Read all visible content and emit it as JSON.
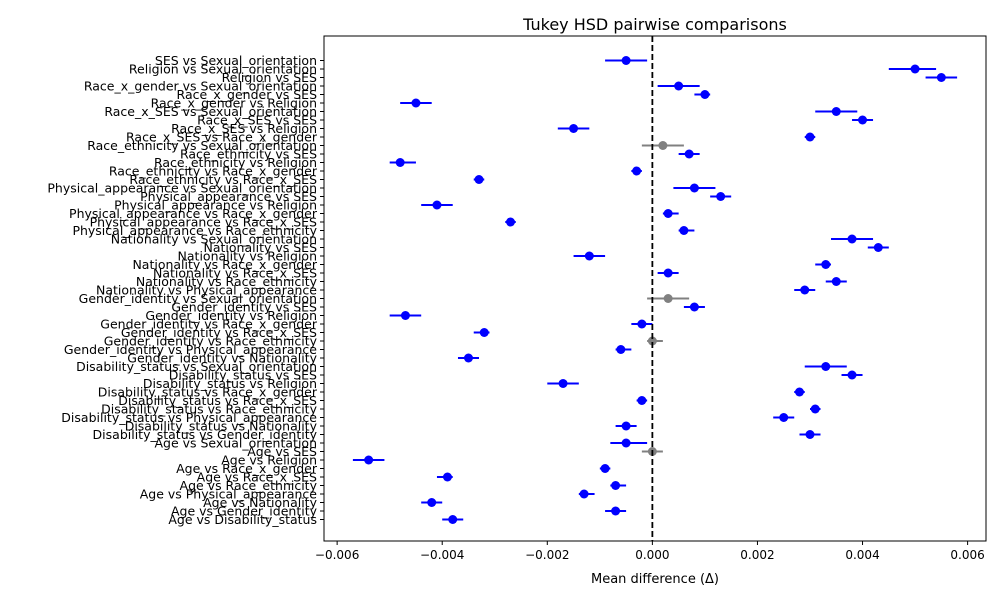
{
  "chart_data": {
    "type": "scatter",
    "title": "Tukey HSD pairwise comparisons",
    "xlabel": "Mean difference (Δ)",
    "ylabel": "",
    "xlim": [
      -0.00625,
      0.00635
    ],
    "xticks": [
      -0.006,
      -0.004,
      -0.002,
      0.0,
      0.002,
      0.004,
      0.006
    ],
    "xtick_labels": [
      "−0.006",
      "−0.004",
      "−0.002",
      "0.000",
      "0.002",
      "0.004",
      "0.006"
    ],
    "reference_line": {
      "x": 0,
      "style": "dashed",
      "color": "#000000"
    },
    "grid": false,
    "colors": {
      "significant": "#0000ff",
      "not_significant": "#808080"
    },
    "rows": [
      {
        "label": "SES vs Sexual_orientation",
        "mean": -0.0005,
        "lo": -0.0009,
        "hi": -0.0001,
        "significant": true
      },
      {
        "label": "Religion vs Sexual_orientation",
        "mean": 0.005,
        "lo": 0.0045,
        "hi": 0.0054,
        "significant": true
      },
      {
        "label": "Religion vs SES",
        "mean": 0.0055,
        "lo": 0.0052,
        "hi": 0.0058,
        "significant": true
      },
      {
        "label": "Race_x_gender vs Sexual_orientation",
        "mean": 0.0005,
        "lo": 0.0001,
        "hi": 0.0009,
        "significant": true
      },
      {
        "label": "Race_x_gender vs SES",
        "mean": 0.001,
        "lo": 0.0008,
        "hi": 0.0011,
        "significant": true
      },
      {
        "label": "Race_x_gender vs Religion",
        "mean": -0.0045,
        "lo": -0.0048,
        "hi": -0.0042,
        "significant": true
      },
      {
        "label": "Race_x_SES vs Sexual_orientation",
        "mean": 0.0035,
        "lo": 0.0031,
        "hi": 0.0039,
        "significant": true
      },
      {
        "label": "Race_x_SES vs SES",
        "mean": 0.004,
        "lo": 0.0038,
        "hi": 0.0042,
        "significant": true
      },
      {
        "label": "Race_x_SES vs Religion",
        "mean": -0.0015,
        "lo": -0.0018,
        "hi": -0.0012,
        "significant": true
      },
      {
        "label": "Race_x_SES vs Race_x_gender",
        "mean": 0.003,
        "lo": 0.0029,
        "hi": 0.0031,
        "significant": true
      },
      {
        "label": "Race_ethnicity vs Sexual_orientation",
        "mean": 0.0002,
        "lo": -0.0002,
        "hi": 0.0006,
        "significant": false
      },
      {
        "label": "Race_ethnicity vs SES",
        "mean": 0.0007,
        "lo": 0.0005,
        "hi": 0.0009,
        "significant": true
      },
      {
        "label": "Race_ethnicity vs Religion",
        "mean": -0.0048,
        "lo": -0.005,
        "hi": -0.0045,
        "significant": true
      },
      {
        "label": "Race_ethnicity vs Race_x_gender",
        "mean": -0.0003,
        "lo": -0.0004,
        "hi": -0.0002,
        "significant": true
      },
      {
        "label": "Race_ethnicity vs Race_x_SES",
        "mean": -0.0033,
        "lo": -0.0034,
        "hi": -0.0032,
        "significant": true
      },
      {
        "label": "Physical_appearance vs Sexual_orientation",
        "mean": 0.0008,
        "lo": 0.0004,
        "hi": 0.0012,
        "significant": true
      },
      {
        "label": "Physical_appearance vs SES",
        "mean": 0.0013,
        "lo": 0.0011,
        "hi": 0.0015,
        "significant": true
      },
      {
        "label": "Physical_appearance vs Religion",
        "mean": -0.0041,
        "lo": -0.0044,
        "hi": -0.0038,
        "significant": true
      },
      {
        "label": "Physical_appearance vs Race_x_gender",
        "mean": 0.0003,
        "lo": 0.0002,
        "hi": 0.0005,
        "significant": true
      },
      {
        "label": "Physical_appearance vs Race_x_SES",
        "mean": -0.0027,
        "lo": -0.0028,
        "hi": -0.0026,
        "significant": true
      },
      {
        "label": "Physical_appearance vs Race_ethnicity",
        "mean": 0.0006,
        "lo": 0.0005,
        "hi": 0.0008,
        "significant": true
      },
      {
        "label": "Nationality vs Sexual_orientation",
        "mean": 0.0038,
        "lo": 0.0034,
        "hi": 0.0042,
        "significant": true
      },
      {
        "label": "Nationality vs SES",
        "mean": 0.0043,
        "lo": 0.0041,
        "hi": 0.0045,
        "significant": true
      },
      {
        "label": "Nationality vs Religion",
        "mean": -0.0012,
        "lo": -0.0015,
        "hi": -0.0009,
        "significant": true
      },
      {
        "label": "Nationality vs Race_x_gender",
        "mean": 0.0033,
        "lo": 0.0031,
        "hi": 0.0034,
        "significant": true
      },
      {
        "label": "Nationality vs Race_x_SES",
        "mean": 0.0003,
        "lo": 0.0001,
        "hi": 0.0005,
        "significant": true
      },
      {
        "label": "Nationality vs Race_ethnicity",
        "mean": 0.0035,
        "lo": 0.0033,
        "hi": 0.0037,
        "significant": true
      },
      {
        "label": "Nationality vs Physical_appearance",
        "mean": 0.0029,
        "lo": 0.0027,
        "hi": 0.0031,
        "significant": true
      },
      {
        "label": "Gender_identity vs Sexual_orientation",
        "mean": 0.0003,
        "lo": -0.0001,
        "hi": 0.0007,
        "significant": false
      },
      {
        "label": "Gender_identity vs SES",
        "mean": 0.0008,
        "lo": 0.0006,
        "hi": 0.001,
        "significant": true
      },
      {
        "label": "Gender_identity vs Religion",
        "mean": -0.0047,
        "lo": -0.005,
        "hi": -0.0044,
        "significant": true
      },
      {
        "label": "Gender_identity vs Race_x_gender",
        "mean": -0.0002,
        "lo": -0.0004,
        "hi": 0.0,
        "significant": true
      },
      {
        "label": "Gender_identity vs Race_x_SES",
        "mean": -0.0032,
        "lo": -0.0034,
        "hi": -0.0031,
        "significant": true
      },
      {
        "label": "Gender_identity vs Race_ethnicity",
        "mean": 0.0,
        "lo": -0.0001,
        "hi": 0.0002,
        "significant": false
      },
      {
        "label": "Gender_identity vs Physical_appearance",
        "mean": -0.0006,
        "lo": -0.0007,
        "hi": -0.0004,
        "significant": true
      },
      {
        "label": "Gender_identity vs Nationality",
        "mean": -0.0035,
        "lo": -0.0037,
        "hi": -0.0033,
        "significant": true
      },
      {
        "label": "Disability_status vs Sexual_orientation",
        "mean": 0.0033,
        "lo": 0.0029,
        "hi": 0.0037,
        "significant": true
      },
      {
        "label": "Disability_status vs SES",
        "mean": 0.0038,
        "lo": 0.0036,
        "hi": 0.004,
        "significant": true
      },
      {
        "label": "Disability_status vs Religion",
        "mean": -0.0017,
        "lo": -0.002,
        "hi": -0.0014,
        "significant": true
      },
      {
        "label": "Disability_status vs Race_x_gender",
        "mean": 0.0028,
        "lo": 0.0027,
        "hi": 0.0029,
        "significant": true
      },
      {
        "label": "Disability_status vs Race_x_SES",
        "mean": -0.0002,
        "lo": -0.0003,
        "hi": -0.0001,
        "significant": true
      },
      {
        "label": "Disability_status vs Race_ethnicity",
        "mean": 0.0031,
        "lo": 0.003,
        "hi": 0.0032,
        "significant": true
      },
      {
        "label": "Disability_status vs Physical_appearance",
        "mean": 0.0025,
        "lo": 0.0023,
        "hi": 0.0027,
        "significant": true
      },
      {
        "label": "Disability_status vs Nationality",
        "mean": -0.0005,
        "lo": -0.0007,
        "hi": -0.0003,
        "significant": true
      },
      {
        "label": "Disability_status vs Gender_identity",
        "mean": 0.003,
        "lo": 0.0028,
        "hi": 0.0032,
        "significant": true
      },
      {
        "label": "Age vs Sexual_orientation",
        "mean": -0.0005,
        "lo": -0.0008,
        "hi": -0.0001,
        "significant": true
      },
      {
        "label": "Age vs SES",
        "mean": 0.0,
        "lo": -0.0002,
        "hi": 0.0002,
        "significant": false
      },
      {
        "label": "Age vs Religion",
        "mean": -0.0054,
        "lo": -0.0057,
        "hi": -0.0051,
        "significant": true
      },
      {
        "label": "Age vs Race_x_gender",
        "mean": -0.0009,
        "lo": -0.001,
        "hi": -0.0008,
        "significant": true
      },
      {
        "label": "Age vs Race_x_SES",
        "mean": -0.0039,
        "lo": -0.0041,
        "hi": -0.0038,
        "significant": true
      },
      {
        "label": "Age vs Race_ethnicity",
        "mean": -0.0007,
        "lo": -0.0008,
        "hi": -0.0005,
        "significant": true
      },
      {
        "label": "Age vs Physical_appearance",
        "mean": -0.0013,
        "lo": -0.0014,
        "hi": -0.0011,
        "significant": true
      },
      {
        "label": "Age vs Nationality",
        "mean": -0.0042,
        "lo": -0.0044,
        "hi": -0.004,
        "significant": true
      },
      {
        "label": "Age vs Gender_identity",
        "mean": -0.0007,
        "lo": -0.0009,
        "hi": -0.0005,
        "significant": true
      },
      {
        "label": "Age vs Disability_status",
        "mean": -0.0038,
        "lo": -0.004,
        "hi": -0.0036,
        "significant": true
      }
    ]
  }
}
